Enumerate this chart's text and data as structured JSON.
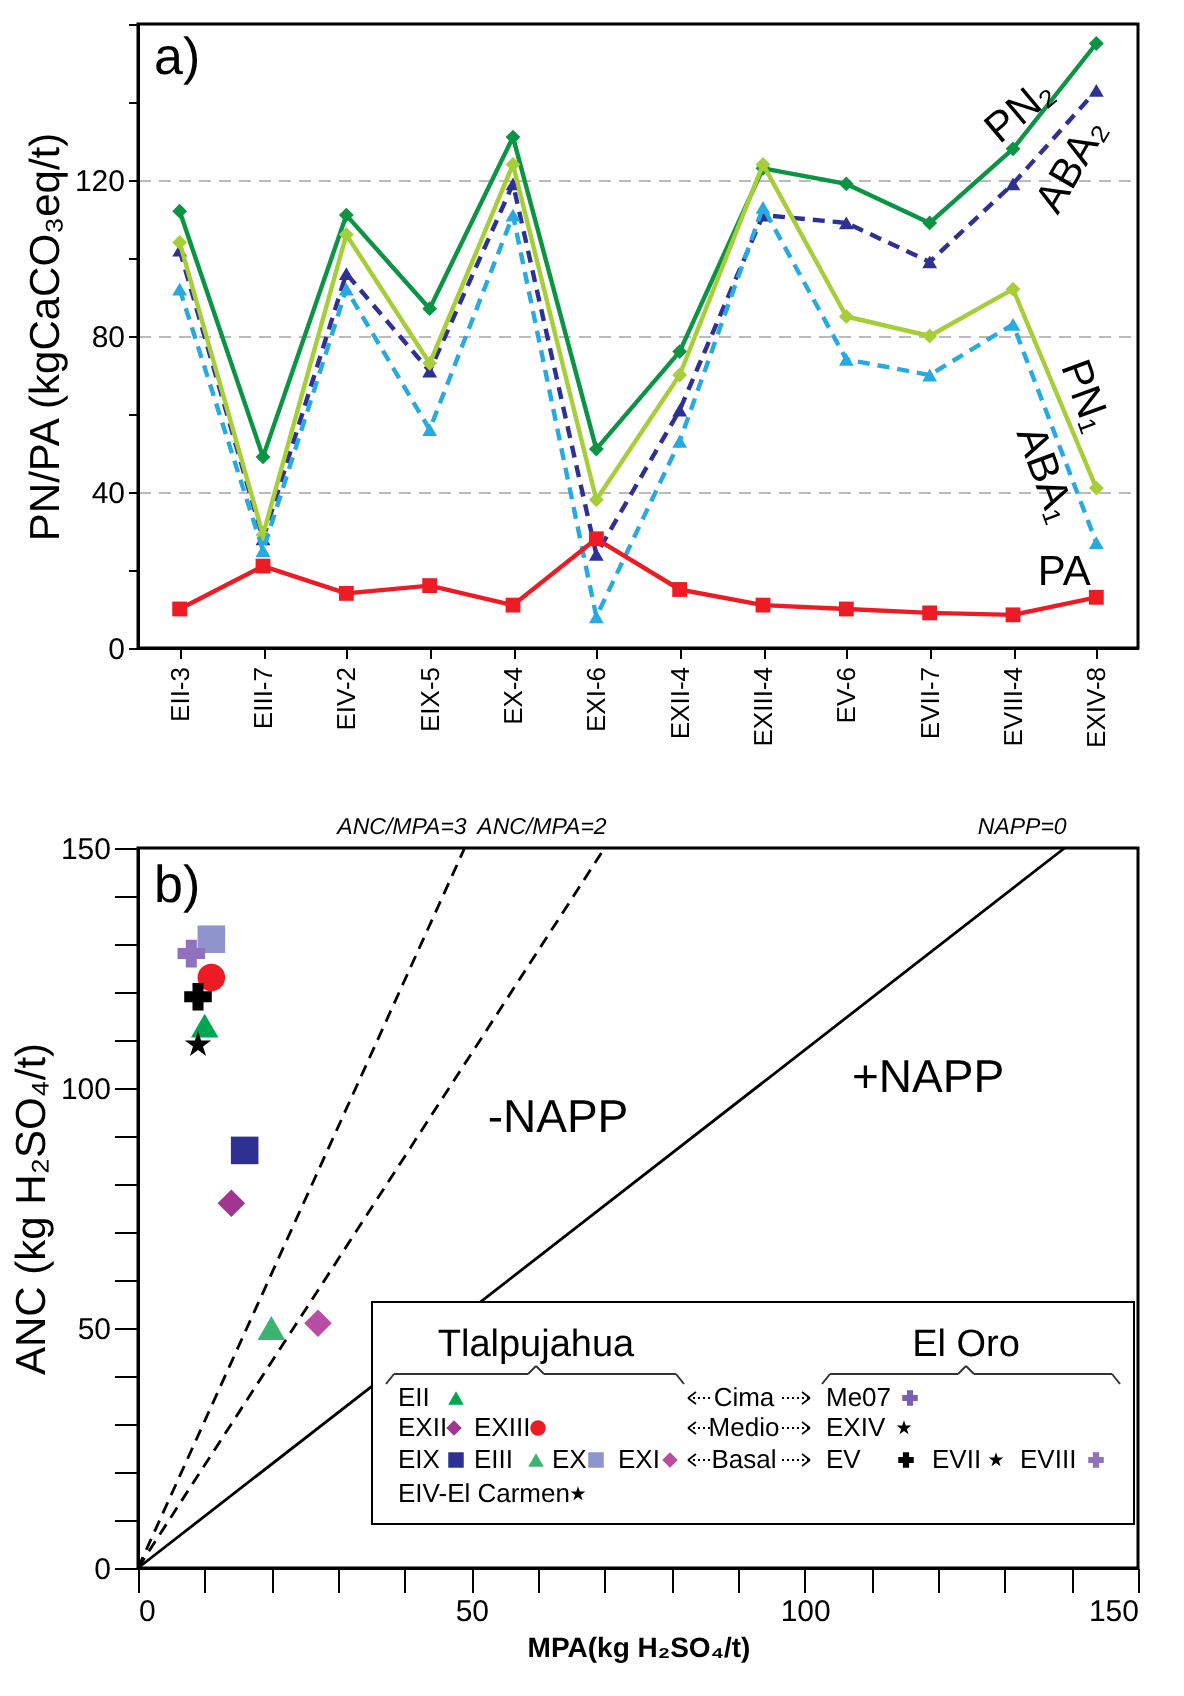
{
  "chart_data": [
    {
      "type": "line",
      "ylabel": "PN/PA (kgCaCO₃eq/t)",
      "annotations": [
        "a)"
      ],
      "categories": [
        "EII-3",
        "EIII-7",
        "EIV-2",
        "EIX-5",
        "EX-4",
        "EXI-6",
        "EXII-4",
        "EXIII-4",
        "EV-6",
        "EVII-7",
        "EVIII-4",
        "EXIV-8"
      ],
      "ylim": [
        0,
        160
      ],
      "yticks": [
        0,
        {
          "value": 20,
          "label": null
        },
        40,
        {
          "value": 60,
          "label": null
        },
        80,
        {
          "value": 100,
          "label": null
        },
        120,
        {
          "value": 140,
          "label": null
        },
        {
          "value": 160,
          "label": null
        }
      ],
      "grid": "y",
      "legend": false,
      "series": [
        {
          "name": "PN₂",
          "color": "#0b9444",
          "marker": "diamond",
          "line_style": "solid",
          "values": [
            112,
            49,
            111,
            87,
            131,
            51,
            76,
            123,
            119,
            109,
            128,
            155
          ]
        },
        {
          "name": "ABA₂",
          "color": "#2e3192",
          "marker": "triangle",
          "line_style": "dashed",
          "values": [
            102,
            28,
            96,
            71,
            119,
            24,
            61,
            111,
            109,
            99,
            119,
            143
          ]
        },
        {
          "name": "PN₁",
          "color": "#a6ce39",
          "marker": "diamond",
          "line_style": "solid",
          "values": [
            104,
            29,
            106,
            73,
            124,
            38,
            70,
            124,
            85,
            80,
            92,
            41
          ]
        },
        {
          "name": "ABA₁",
          "color": "#27aae1",
          "marker": "triangle",
          "line_style": "dashed",
          "values": [
            92,
            25,
            92,
            56,
            111,
            8,
            53,
            113,
            74,
            70,
            83,
            27
          ]
        },
        {
          "name": "PA",
          "color": "#ed1c24",
          "marker": "square",
          "line_style": "solid",
          "values": [
            10,
            21,
            14,
            16,
            11,
            28,
            15,
            11,
            10,
            9,
            8.5,
            13
          ]
        }
      ]
    },
    {
      "type": "scatter",
      "xlabel": "MPA(kg H₂SO₄/t)",
      "ylabel": "ANC (kg H₂SO₄/t)",
      "annotations": [
        "b)",
        "-NAPP",
        "+NAPP",
        "Tlalpujahua",
        "El Oro",
        "Cima",
        "Medio",
        "Basal"
      ],
      "xlim": [
        0,
        150
      ],
      "ylim": [
        0,
        150
      ],
      "xticks": [
        0,
        {
          "value": 10,
          "label": null
        },
        {
          "value": 20,
          "label": null
        },
        {
          "value": 30,
          "label": null
        },
        {
          "value": 40,
          "label": null
        },
        50,
        {
          "value": 60,
          "label": null
        },
        {
          "value": 70,
          "label": null
        },
        {
          "value": 80,
          "label": null
        },
        {
          "value": 90,
          "label": null
        },
        100,
        {
          "value": 110,
          "label": null
        },
        {
          "value": 120,
          "label": null
        },
        {
          "value": 130,
          "label": null
        },
        {
          "value": 140,
          "label": null
        },
        150
      ],
      "yticks": [
        0,
        {
          "value": 10,
          "label": null
        },
        {
          "value": 20,
          "label": null
        },
        {
          "value": 30,
          "label": null
        },
        {
          "value": 40,
          "label": null
        },
        50,
        {
          "value": 60,
          "label": null
        },
        {
          "value": 70,
          "label": null
        },
        {
          "value": 80,
          "label": null
        },
        {
          "value": 90,
          "label": null
        },
        100,
        {
          "value": 110,
          "label": null
        },
        {
          "value": 120,
          "label": null
        },
        {
          "value": 130,
          "label": null
        },
        {
          "value": 140,
          "label": null
        },
        150
      ],
      "grid": false,
      "legend": "bottom right",
      "series": [
        {
          "name": "ANC/MPA=3",
          "type": "line",
          "color": "#000000",
          "line_style": "dashed",
          "x": [
            0,
            49
          ],
          "values": [
            0,
            150
          ]
        },
        {
          "name": "ANC/MPA=2",
          "type": "line",
          "color": "#000000",
          "line_style": "dashed",
          "x": [
            0,
            70
          ],
          "values": [
            0,
            150
          ]
        },
        {
          "name": "NAPP=0",
          "type": "line",
          "color": "#000000",
          "line_style": "solid",
          "x": [
            0,
            139
          ],
          "values": [
            0,
            150
          ]
        },
        {
          "name": "EII",
          "type": "scatter",
          "color": "#00a651",
          "marker": "triangle",
          "x": [
            10
          ],
          "values": [
            113
          ]
        },
        {
          "name": "EXII",
          "type": "scatter",
          "color": "#a0368f",
          "marker": "diamond",
          "x": [
            14
          ],
          "values": [
            76
          ]
        },
        {
          "name": "EXIII",
          "type": "scatter",
          "color": "#ed1c24",
          "marker": "circle",
          "x": [
            11
          ],
          "values": [
            123
          ]
        },
        {
          "name": "EIX",
          "type": "scatter",
          "color": "#2e3192",
          "marker": "square",
          "x": [
            16
          ],
          "values": [
            87
          ]
        },
        {
          "name": "EIII",
          "type": "scatter",
          "color": "#3cb371",
          "marker": "triangle",
          "x": [
            20
          ],
          "values": [
            50
          ]
        },
        {
          "name": "EX",
          "type": "scatter",
          "color": "#8f95cc",
          "marker": "square",
          "x": [
            11
          ],
          "values": [
            131
          ]
        },
        {
          "name": "EXI",
          "type": "scatter",
          "color": "#b84ea3",
          "marker": "diamond",
          "x": [
            27
          ],
          "values": [
            51
          ]
        },
        {
          "name": "EIV-El Carmen",
          "type": "scatter",
          "color": "#000000",
          "marker": "star"
        },
        {
          "name": "Me07",
          "type": "scatter",
          "color": "#7b5fb0",
          "marker": "cross"
        },
        {
          "name": "EXIV",
          "type": "scatter",
          "color": "#000000",
          "marker": "star"
        },
        {
          "name": "EV",
          "type": "scatter",
          "color": "#000000",
          "marker": "cross",
          "x": [
            9
          ],
          "values": [
            119
          ]
        },
        {
          "name": "EVII",
          "type": "scatter",
          "color": "#000000",
          "marker": "star",
          "x": [
            9
          ],
          "values": [
            109
          ]
        },
        {
          "name": "EVIII",
          "type": "scatter",
          "color": "#8e72be",
          "marker": "cross",
          "x": [
            8
          ],
          "values": [
            128
          ]
        }
      ]
    }
  ]
}
